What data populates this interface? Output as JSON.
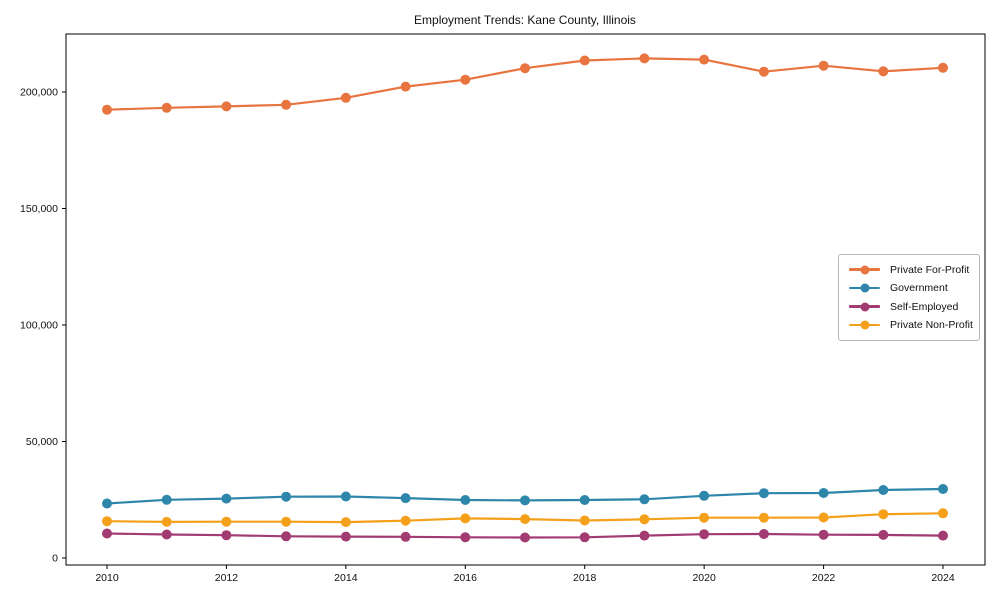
{
  "title": "Employment Trends: Kane County, Illinois",
  "chart_data": {
    "type": "line",
    "title": "Employment Trends: Kane County, Illinois",
    "xlabel": "",
    "ylabel": "",
    "x": [
      2010,
      2011,
      2012,
      2013,
      2014,
      2015,
      2016,
      2017,
      2018,
      2019,
      2020,
      2021,
      2022,
      2023,
      2024
    ],
    "series": [
      {
        "name": "Private For-Profit",
        "color": "#E8743F",
        "values": [
          192400,
          193200,
          193800,
          194500,
          197500,
          202300,
          205300,
          210200,
          213500,
          214400,
          213900,
          208700,
          211300,
          208900,
          210400
        ]
      },
      {
        "name": "Government",
        "color": "#2E86AB",
        "values": [
          23400,
          25000,
          25500,
          26300,
          26400,
          25700,
          24900,
          24700,
          24900,
          25200,
          26700,
          27800,
          27900,
          29200,
          29600
        ]
      },
      {
        "name": "Self-Employed",
        "color": "#A23B72",
        "values": [
          10500,
          10100,
          9800,
          9300,
          9200,
          9100,
          8900,
          8800,
          8900,
          9600,
          10200,
          10300,
          10000,
          9900,
          9600
        ]
      },
      {
        "name": "Private Non-Profit",
        "color": "#F5A01B",
        "values": [
          15800,
          15500,
          15600,
          15600,
          15400,
          16000,
          17000,
          16700,
          16100,
          16600,
          17300,
          17300,
          17400,
          18800,
          19200
        ]
      }
    ],
    "xticks": [
      {
        "value": 2010,
        "label": "2010"
      },
      {
        "value": 2012,
        "label": "2012"
      },
      {
        "value": 2014,
        "label": "2014"
      },
      {
        "value": 2016,
        "label": "2016"
      },
      {
        "value": 2018,
        "label": "2018"
      },
      {
        "value": 2020,
        "label": "2020"
      },
      {
        "value": 2022,
        "label": "2022"
      },
      {
        "value": 2024,
        "label": "2024"
      }
    ],
    "yticks": [
      {
        "value": 0,
        "label": "0"
      },
      {
        "value": 50000,
        "label": "50,000"
      },
      {
        "value": 100000,
        "label": "100,000"
      },
      {
        "value": 150000,
        "label": "150,000"
      },
      {
        "value": 200000,
        "label": "200,000"
      }
    ],
    "ylim": [
      0,
      225000
    ],
    "xlim": [
      2009.3,
      2024.7
    ],
    "grid": false,
    "legend_position": "right"
  }
}
